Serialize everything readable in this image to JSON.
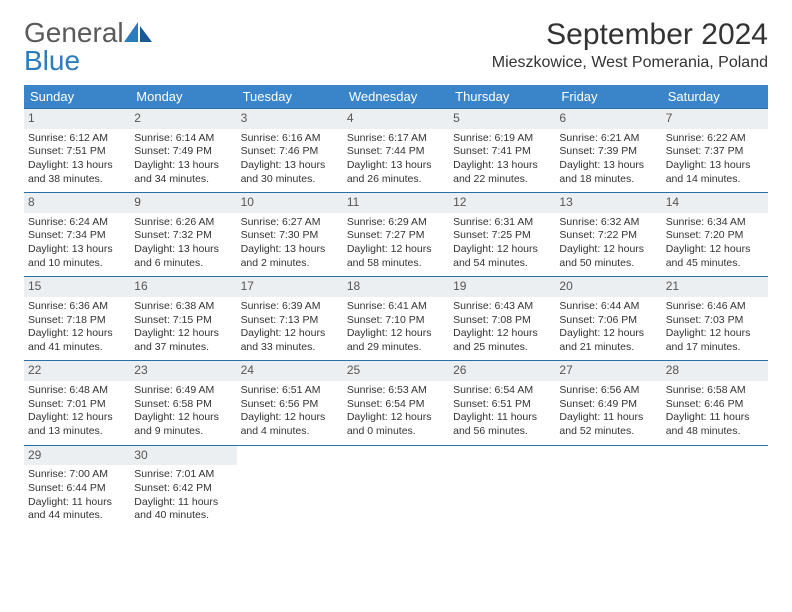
{
  "brand": {
    "name_part1": "General",
    "name_part2": "Blue"
  },
  "title": "September 2024",
  "location": "Mieszkowice, West Pomerania, Poland",
  "colors": {
    "header_bg": "#3a85c9",
    "header_text": "#ffffff",
    "daynum_bg": "#eceff1",
    "border": "#2b6ea8",
    "brand_blue": "#2b7bbf",
    "text": "#333333"
  },
  "weekdays": [
    "Sunday",
    "Monday",
    "Tuesday",
    "Wednesday",
    "Thursday",
    "Friday",
    "Saturday"
  ],
  "days": [
    {
      "n": "1",
      "sr": "6:12 AM",
      "ss": "7:51 PM",
      "dl": "13 hours and 38 minutes."
    },
    {
      "n": "2",
      "sr": "6:14 AM",
      "ss": "7:49 PM",
      "dl": "13 hours and 34 minutes."
    },
    {
      "n": "3",
      "sr": "6:16 AM",
      "ss": "7:46 PM",
      "dl": "13 hours and 30 minutes."
    },
    {
      "n": "4",
      "sr": "6:17 AM",
      "ss": "7:44 PM",
      "dl": "13 hours and 26 minutes."
    },
    {
      "n": "5",
      "sr": "6:19 AM",
      "ss": "7:41 PM",
      "dl": "13 hours and 22 minutes."
    },
    {
      "n": "6",
      "sr": "6:21 AM",
      "ss": "7:39 PM",
      "dl": "13 hours and 18 minutes."
    },
    {
      "n": "7",
      "sr": "6:22 AM",
      "ss": "7:37 PM",
      "dl": "13 hours and 14 minutes."
    },
    {
      "n": "8",
      "sr": "6:24 AM",
      "ss": "7:34 PM",
      "dl": "13 hours and 10 minutes."
    },
    {
      "n": "9",
      "sr": "6:26 AM",
      "ss": "7:32 PM",
      "dl": "13 hours and 6 minutes."
    },
    {
      "n": "10",
      "sr": "6:27 AM",
      "ss": "7:30 PM",
      "dl": "13 hours and 2 minutes."
    },
    {
      "n": "11",
      "sr": "6:29 AM",
      "ss": "7:27 PM",
      "dl": "12 hours and 58 minutes."
    },
    {
      "n": "12",
      "sr": "6:31 AM",
      "ss": "7:25 PM",
      "dl": "12 hours and 54 minutes."
    },
    {
      "n": "13",
      "sr": "6:32 AM",
      "ss": "7:22 PM",
      "dl": "12 hours and 50 minutes."
    },
    {
      "n": "14",
      "sr": "6:34 AM",
      "ss": "7:20 PM",
      "dl": "12 hours and 45 minutes."
    },
    {
      "n": "15",
      "sr": "6:36 AM",
      "ss": "7:18 PM",
      "dl": "12 hours and 41 minutes."
    },
    {
      "n": "16",
      "sr": "6:38 AM",
      "ss": "7:15 PM",
      "dl": "12 hours and 37 minutes."
    },
    {
      "n": "17",
      "sr": "6:39 AM",
      "ss": "7:13 PM",
      "dl": "12 hours and 33 minutes."
    },
    {
      "n": "18",
      "sr": "6:41 AM",
      "ss": "7:10 PM",
      "dl": "12 hours and 29 minutes."
    },
    {
      "n": "19",
      "sr": "6:43 AM",
      "ss": "7:08 PM",
      "dl": "12 hours and 25 minutes."
    },
    {
      "n": "20",
      "sr": "6:44 AM",
      "ss": "7:06 PM",
      "dl": "12 hours and 21 minutes."
    },
    {
      "n": "21",
      "sr": "6:46 AM",
      "ss": "7:03 PM",
      "dl": "12 hours and 17 minutes."
    },
    {
      "n": "22",
      "sr": "6:48 AM",
      "ss": "7:01 PM",
      "dl": "12 hours and 13 minutes."
    },
    {
      "n": "23",
      "sr": "6:49 AM",
      "ss": "6:58 PM",
      "dl": "12 hours and 9 minutes."
    },
    {
      "n": "24",
      "sr": "6:51 AM",
      "ss": "6:56 PM",
      "dl": "12 hours and 4 minutes."
    },
    {
      "n": "25",
      "sr": "6:53 AM",
      "ss": "6:54 PM",
      "dl": "12 hours and 0 minutes."
    },
    {
      "n": "26",
      "sr": "6:54 AM",
      "ss": "6:51 PM",
      "dl": "11 hours and 56 minutes."
    },
    {
      "n": "27",
      "sr": "6:56 AM",
      "ss": "6:49 PM",
      "dl": "11 hours and 52 minutes."
    },
    {
      "n": "28",
      "sr": "6:58 AM",
      "ss": "6:46 PM",
      "dl": "11 hours and 48 minutes."
    },
    {
      "n": "29",
      "sr": "7:00 AM",
      "ss": "6:44 PM",
      "dl": "11 hours and 44 minutes."
    },
    {
      "n": "30",
      "sr": "7:01 AM",
      "ss": "6:42 PM",
      "dl": "11 hours and 40 minutes."
    }
  ],
  "labels": {
    "sunrise": "Sunrise:",
    "sunset": "Sunset:",
    "daylight": "Daylight:"
  }
}
